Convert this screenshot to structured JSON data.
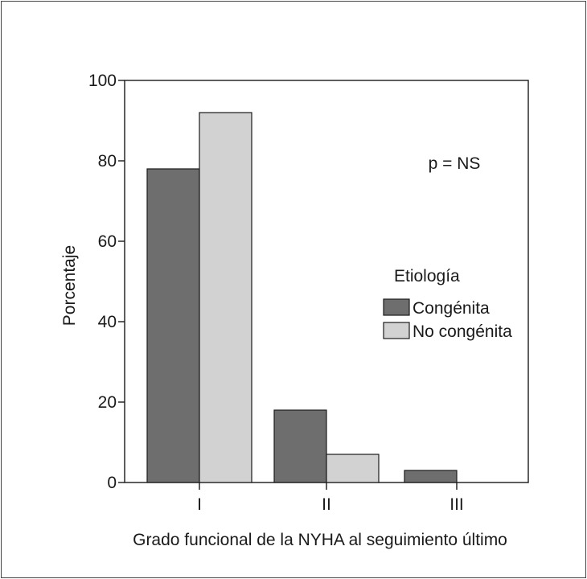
{
  "chart_data": {
    "type": "bar",
    "title": "",
    "xlabel": "Grado funcional de la NYHA al seguimiento último",
    "ylabel": "Porcentaje",
    "categories": [
      "I",
      "II",
      "III"
    ],
    "series": [
      {
        "name": "Congénita",
        "values": [
          78,
          18,
          3
        ],
        "color": "#6e6e6e"
      },
      {
        "name": "No congénita",
        "values": [
          92,
          7,
          0
        ],
        "color": "#d2d2d2"
      }
    ],
    "ylim": [
      0,
      100
    ],
    "yticks": [
      0,
      20,
      40,
      60,
      80,
      100
    ],
    "grid": false,
    "legend": {
      "title": "Etiología",
      "placement": "right"
    },
    "annotation": "p = NS"
  }
}
